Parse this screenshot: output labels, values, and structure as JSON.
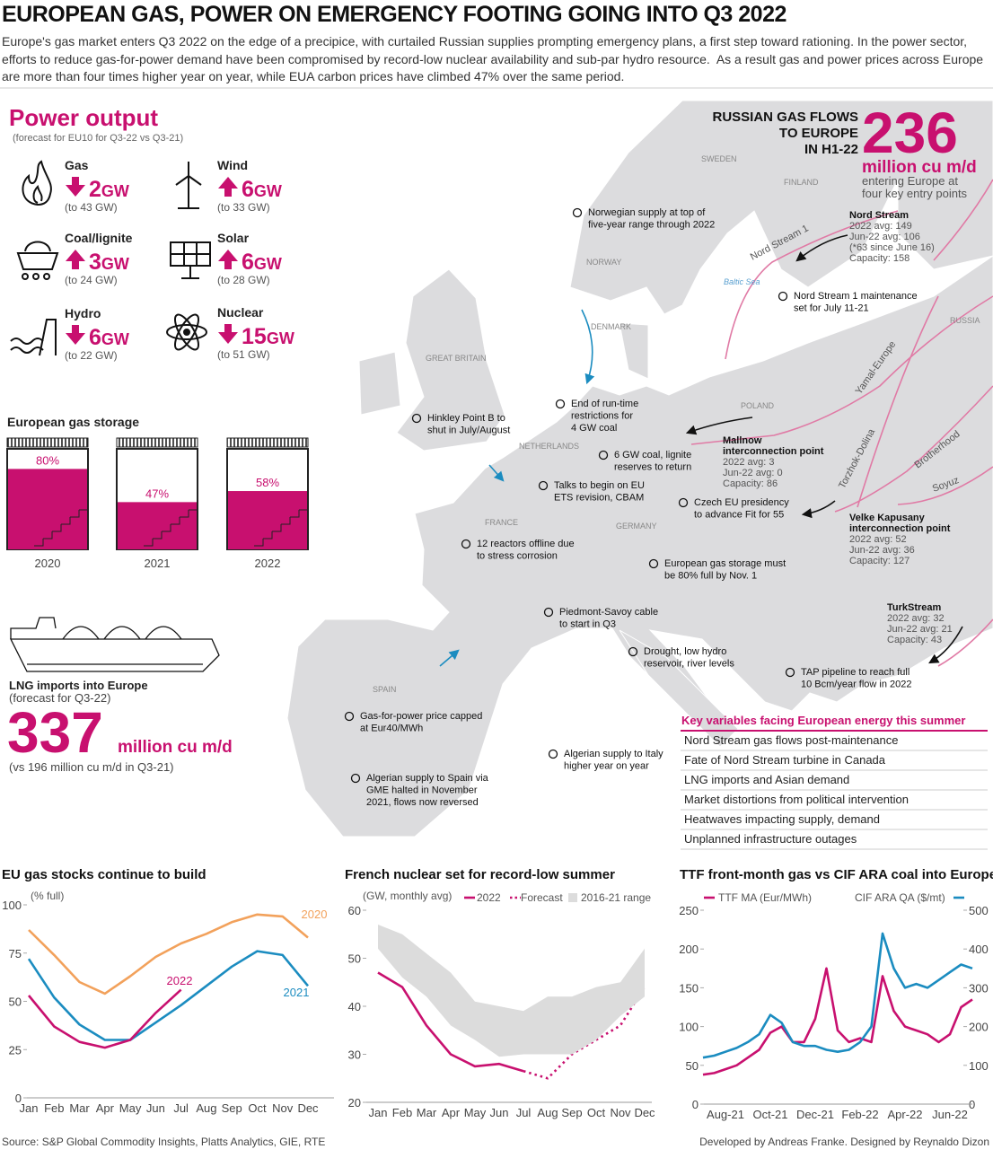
{
  "header": {
    "title": "EUROPEAN GAS, POWER ON EMERGENCY FOOTING GOING INTO Q3 2022",
    "intro": "Europe's gas market enters Q3 2022 on the edge of a precipice, with curtailed Russian supplies prompting emergency plans, a first step toward rationing. In the power sector, efforts to reduce gas-for-power demand have been compromised by record-low nuclear availability and sub-par hydro resource.  As a result gas and power prices across Europe are more than four times higher year on year, while EUA carbon prices have climbed 47% over the same period."
  },
  "power_output": {
    "title": "Power output",
    "subtitle": "(forecast for EU10 for Q3-22 vs Q3-21)",
    "items": [
      {
        "name": "Gas",
        "direction": "down",
        "change": "2",
        "unit": "GW",
        "total": "(to 43 GW)"
      },
      {
        "name": "Wind",
        "direction": "up",
        "change": "6",
        "unit": "GW",
        "total": "(to 33 GW)"
      },
      {
        "name": "Coal/lignite",
        "direction": "up",
        "change": "3",
        "unit": "GW",
        "total": "(to 24 GW)"
      },
      {
        "name": "Solar",
        "direction": "up",
        "change": "6",
        "unit": "GW",
        "total": "(to 28 GW)"
      },
      {
        "name": "Hydro",
        "direction": "down",
        "change": "6",
        "unit": "GW",
        "total": "(to 22 GW)"
      },
      {
        "name": "Nuclear",
        "direction": "down",
        "change": "15",
        "unit": "GW",
        "total": "(to 51 GW)"
      }
    ]
  },
  "gas_storage": {
    "title": "European gas storage",
    "categories": [
      "2020",
      "2021",
      "2022"
    ],
    "values": [
      80,
      47,
      58
    ],
    "value_labels": [
      "80%",
      "47%",
      "58%"
    ],
    "color": "#c8106f"
  },
  "lng": {
    "title": "LNG imports into Europe",
    "subtitle": "(forecast for Q3-22)",
    "value": "337",
    "unit": "million cu m/d",
    "comparison": "(vs 196 million cu m/d in Q3-21)"
  },
  "russian_flows": {
    "title_lines": [
      "RUSSIAN GAS FLOWS",
      "TO EUROPE",
      "IN H1-22"
    ],
    "value": "236",
    "unit": "million cu m/d",
    "note_lines": [
      "entering Europe at",
      "four key entry points"
    ]
  },
  "entry_points": [
    {
      "name_lines": [
        "Nord Stream"
      ],
      "lines": [
        "2022 avg: 149",
        "Jun-22 avg: 106",
        "(*63 since June 16)",
        "Capacity: 158"
      ]
    },
    {
      "name_lines": [
        "Mallnow",
        "interconnection point"
      ],
      "lines": [
        "2022 avg: 3",
        "Jun-22 avg: 0",
        "Capacity: 86"
      ]
    },
    {
      "name_lines": [
        "Velke Kapusany",
        "interconnection point"
      ],
      "lines": [
        "2022 avg: 52",
        "Jun-22 avg: 36",
        "Capacity: 127"
      ]
    },
    {
      "name_lines": [
        "TurkStream"
      ],
      "lines": [
        "2022 avg: 32",
        "Jun-22 avg: 21",
        "Capacity: 43"
      ]
    }
  ],
  "map_labels": [
    "SWEDEN",
    "FINLAND",
    "NORWAY",
    "DENMARK",
    "GREAT BRITAIN",
    "NETHERLANDS",
    "POLAND",
    "FRANCE",
    "GERMANY",
    "SPAIN",
    "RUSSIA"
  ],
  "sea_label": "Baltic Sea",
  "pipelines": [
    "Nord Stream 1",
    "Yamal-Europe",
    "Torzhok-Dolina",
    "Brotherhood",
    "Soyuz"
  ],
  "annotations": [
    {
      "lines": [
        "Norwegian supply at top of",
        "five-year range through 2022"
      ]
    },
    {
      "lines": [
        "Nord Stream 1 maintenance",
        "set for July 11-21"
      ]
    },
    {
      "lines": [
        "End of run-time",
        "restrictions for",
        "4 GW coal"
      ]
    },
    {
      "lines": [
        "Hinkley Point B to",
        "shut in July/August"
      ]
    },
    {
      "lines": [
        "6 GW coal, lignite",
        "reserves to return"
      ]
    },
    {
      "lines": [
        "Talks to begin on EU",
        "ETS revision, CBAM"
      ]
    },
    {
      "lines": [
        "Czech EU presidency",
        "to advance Fit for 55"
      ]
    },
    {
      "lines": [
        "12 reactors offline due",
        "to stress corrosion"
      ]
    },
    {
      "lines": [
        "European gas storage must",
        "be 80% full by Nov. 1"
      ]
    },
    {
      "lines": [
        "Piedmont-Savoy cable",
        "to start in Q3"
      ]
    },
    {
      "lines": [
        "Drought, low hydro",
        "reservoir, river levels"
      ]
    },
    {
      "lines": [
        "TAP pipeline to reach full",
        "10 Bcm/year flow in 2022"
      ]
    },
    {
      "lines": [
        "Gas-for-power price capped",
        "at Eur40/MWh"
      ]
    },
    {
      "lines": [
        "Algerian supply to Italy",
        "higher year on year"
      ]
    },
    {
      "lines": [
        "Algerian supply to Spain via",
        "GME halted in November",
        "2021, flows now reversed"
      ]
    }
  ],
  "key_variables": {
    "title": "Key variables facing European energy this summer",
    "items": [
      "Nord Stream gas flows post-maintenance",
      "Fate of Nord Stream turbine in Canada",
      "LNG imports and Asian demand",
      "Market distortions from political intervention",
      "Heatwaves impacting supply, demand",
      "Unplanned infrastructure outages"
    ]
  },
  "chart_data": [
    {
      "type": "line",
      "title": "EU gas stocks continue to build",
      "subtitle": "(% full)",
      "categories": [
        "Jan",
        "Feb",
        "Mar",
        "Apr",
        "May",
        "Jun",
        "Jul",
        "Aug",
        "Sep",
        "Oct",
        "Nov",
        "Dec"
      ],
      "ylim": [
        0,
        100
      ],
      "yticks": [
        0,
        25,
        50,
        75,
        100
      ],
      "series": [
        {
          "name": "2020",
          "color": "#f2a15b",
          "values": [
            87,
            74,
            60,
            54,
            63,
            73,
            80,
            85,
            91,
            95,
            94,
            83
          ]
        },
        {
          "name": "2021",
          "color": "#1b8cc0",
          "values": [
            72,
            52,
            38,
            30,
            30,
            39,
            48,
            58,
            68,
            76,
            74,
            58
          ]
        },
        {
          "name": "2022",
          "color": "#c8106f",
          "values": [
            53,
            37,
            29,
            26,
            30,
            44,
            56,
            null,
            null,
            null,
            null,
            null
          ]
        }
      ]
    },
    {
      "type": "line",
      "title": "French nuclear set for record-low summer",
      "subtitle": "(GW, monthly avg)",
      "categories": [
        "Jan",
        "Feb",
        "Mar",
        "Apr",
        "May",
        "Jun",
        "Jul",
        "Aug",
        "Sep",
        "Oct",
        "Nov",
        "Dec"
      ],
      "ylim": [
        20,
        60
      ],
      "yticks": [
        20,
        30,
        40,
        50,
        60
      ],
      "series": [
        {
          "name": "2022",
          "color": "#c8106f",
          "values": [
            47,
            44,
            36,
            30,
            27.5,
            28,
            26.5,
            null,
            null,
            null,
            null,
            null
          ]
        },
        {
          "name": "Forecast",
          "color": "#c8106f",
          "style": "dotted",
          "values": [
            null,
            null,
            null,
            null,
            null,
            null,
            26.5,
            25,
            30,
            33,
            36,
            44
          ]
        },
        {
          "name": "2016-21 range",
          "color": "#dcdcdc",
          "type": "range",
          "low": [
            52,
            46,
            42,
            36,
            33,
            29.5,
            30,
            30,
            30,
            33,
            38,
            42
          ],
          "high": [
            57,
            55,
            51,
            47,
            41,
            40,
            39,
            42,
            42,
            44,
            45,
            52
          ]
        }
      ]
    },
    {
      "type": "line",
      "title": "TTF front-month gas vs CIF ARA coal into Europe",
      "categories": [
        null,
        null,
        "Aug-21",
        null,
        null,
        null,
        "Oct-21",
        null,
        null,
        null,
        "Dec-21",
        null,
        null,
        null,
        "Feb-22",
        null,
        null,
        null,
        "Apr-22",
        null,
        null,
        null,
        "Jun-22",
        null,
        null
      ],
      "ylim": [
        0,
        250
      ],
      "yticks": [
        0,
        50,
        100,
        150,
        200,
        250
      ],
      "y2lim": [
        0,
        500
      ],
      "y2ticks": [
        0,
        100,
        200,
        300,
        400,
        500
      ],
      "series": [
        {
          "name": "TTF MA (Eur/MWh)",
          "color": "#c8106f",
          "values": [
            38,
            40,
            45,
            50,
            60,
            70,
            92,
            100,
            80,
            80,
            110,
            175,
            95,
            80,
            85,
            80,
            165,
            120,
            100,
            95,
            90,
            80,
            90,
            125,
            135
          ]
        },
        {
          "name": "CIF ARA QA ($/mt)",
          "color": "#1b8cc0",
          "axis": "y2",
          "values": [
            120,
            125,
            135,
            145,
            160,
            180,
            230,
            210,
            160,
            150,
            150,
            140,
            135,
            140,
            160,
            200,
            440,
            350,
            300,
            310,
            300,
            320,
            340,
            360,
            350
          ]
        }
      ]
    }
  ],
  "footer": {
    "source": "Source: S&P Global Commodity Insights, Platts Analytics, GIE, RTE",
    "credits": "Developed by Andreas Franke. Designed by Reynaldo Dizon"
  }
}
